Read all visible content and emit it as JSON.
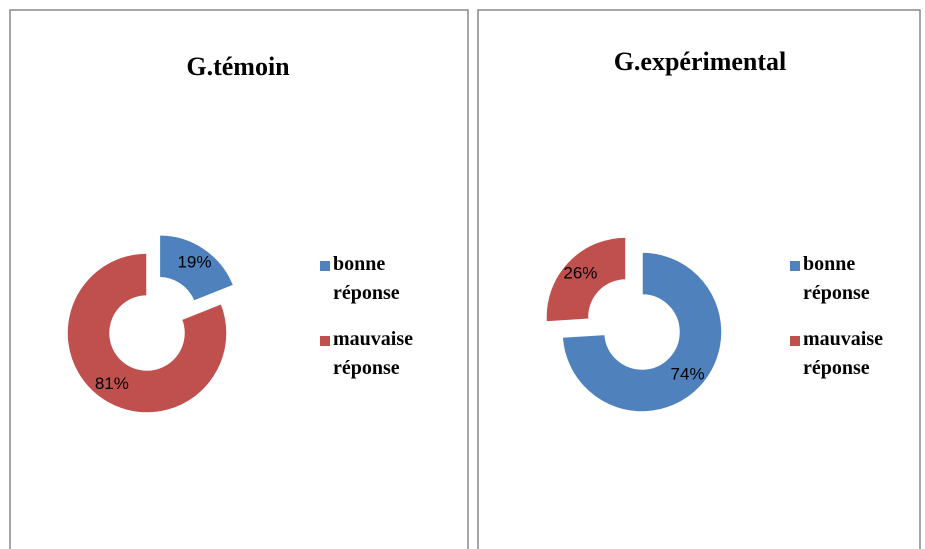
{
  "chart_data": [
    {
      "type": "donut",
      "title": "G.témoin",
      "categories": [
        "bonne réponse",
        "mauvaise réponse"
      ],
      "values": [
        19,
        81
      ],
      "value_labels": [
        "19%",
        "81%"
      ],
      "colors": [
        "#4f81bd",
        "#c0504d"
      ],
      "explode": [
        true,
        false
      ],
      "legend": "right"
    },
    {
      "type": "donut",
      "title": "G.expérimental",
      "categories": [
        "bonne réponse",
        "mauvaise réponse"
      ],
      "values": [
        74,
        26
      ],
      "value_labels": [
        "74%",
        "26%"
      ],
      "colors": [
        "#4f81bd",
        "#c0504d"
      ],
      "explode": [
        false,
        true
      ],
      "legend": "right"
    }
  ]
}
